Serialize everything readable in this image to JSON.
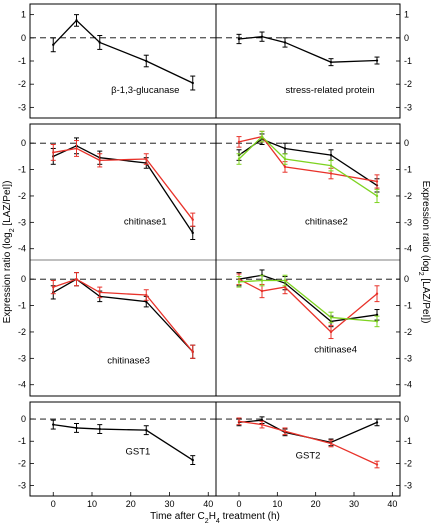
{
  "figure": {
    "xlabel_prefix": "Time after C",
    "xlabel_sub": "2",
    "xlabel_mid": "H",
    "xlabel_sub2": "4",
    "xlabel_suffix": " treatment (h)",
    "ylabel_left": "Expression ratio (log",
    "ylabel_right": "Expression ratio (log",
    "ylabel_sub": "2",
    "ylabel_tail": " [LAZ/PeI])",
    "colors": {
      "black": "#000000",
      "red": "#e8322a",
      "green": "#7ed321",
      "dash": "#000000"
    }
  },
  "chart_data": [
    {
      "type": "line",
      "title": "β-1,3-glucanase",
      "panel": "top-left",
      "x": [
        0,
        6,
        12,
        24,
        36
      ],
      "xlim": [
        -6,
        42
      ],
      "ylim": [
        -3.2,
        1.2
      ],
      "yticks": [
        -3,
        -2,
        -1,
        0,
        1
      ],
      "xticks": [],
      "series": [
        {
          "color": "black",
          "y": [
            -0.3,
            0.75,
            -0.2,
            -1.0,
            -1.95
          ],
          "err": [
            0.3,
            0.25,
            0.3,
            0.25,
            0.3
          ]
        }
      ]
    },
    {
      "type": "line",
      "title": "stress-related protein",
      "panel": "top-right",
      "x": [
        0,
        6,
        12,
        24,
        36
      ],
      "xlim": [
        -6,
        42
      ],
      "ylim": [
        -3.2,
        1.2
      ],
      "yticks": [
        -3,
        -2,
        -1,
        0,
        1
      ],
      "xticks": [],
      "series": [
        {
          "color": "black",
          "y": [
            -0.05,
            0.05,
            -0.2,
            -1.05,
            -0.98
          ],
          "err": [
            0.2,
            0.2,
            0.2,
            0.15,
            0.15
          ]
        }
      ]
    },
    {
      "type": "line",
      "title": "chitinase1",
      "panel": "mid-upper-left",
      "x": [
        0,
        6,
        12,
        24,
        36
      ],
      "xlim": [
        -6,
        42
      ],
      "ylim": [
        -4.2,
        0.5
      ],
      "yticks": [
        -4,
        -3,
        -2,
        -1,
        0
      ],
      "xticks": [],
      "series": [
        {
          "color": "black",
          "y": [
            -0.5,
            -0.1,
            -0.55,
            -0.75,
            -3.4
          ],
          "err": [
            0.3,
            0.3,
            0.25,
            0.2,
            0.25
          ]
        },
        {
          "color": "red",
          "y": [
            -0.35,
            -0.2,
            -0.65,
            -0.6,
            -2.9
          ],
          "err": [
            0.3,
            0.3,
            0.25,
            0.2,
            0.25
          ]
        }
      ]
    },
    {
      "type": "line",
      "title": "chitinase2",
      "panel": "mid-upper-right",
      "x": [
        0,
        6,
        12,
        24,
        36
      ],
      "xlim": [
        -6,
        42
      ],
      "ylim": [
        -4.2,
        0.5
      ],
      "yticks": [
        -4,
        -3,
        -2,
        -1,
        0
      ],
      "xticks": [],
      "series": [
        {
          "color": "black",
          "y": [
            -0.45,
            0.15,
            -0.2,
            -0.45,
            -1.6
          ],
          "err": [
            0.2,
            0.2,
            0.2,
            0.2,
            0.25
          ]
        },
        {
          "color": "red",
          "y": [
            0.05,
            0.25,
            -0.9,
            -1.15,
            -1.45
          ],
          "err": [
            0.2,
            0.2,
            0.2,
            0.2,
            0.25
          ]
        },
        {
          "color": "green",
          "y": [
            -0.6,
            0.25,
            -0.6,
            -0.85,
            -2.0
          ],
          "err": [
            0.2,
            0.2,
            0.2,
            0.2,
            0.25
          ]
        }
      ]
    },
    {
      "type": "line",
      "title": "chitinase3",
      "panel": "mid-lower-left",
      "x": [
        0,
        6,
        12,
        24,
        36
      ],
      "xlim": [
        -6,
        42
      ],
      "ylim": [
        -4.2,
        0.5
      ],
      "yticks": [
        -4,
        -3,
        -2,
        -1,
        0
      ],
      "xticks": [],
      "series": [
        {
          "color": "black",
          "y": [
            -0.5,
            0.0,
            -0.65,
            -0.85,
            -2.75
          ],
          "err": [
            0.25,
            0.25,
            0.2,
            0.2,
            0.25
          ]
        },
        {
          "color": "red",
          "y": [
            -0.3,
            0.0,
            -0.5,
            -0.6,
            -2.75
          ],
          "err": [
            0.25,
            0.25,
            0.2,
            0.2,
            0.25
          ]
        }
      ]
    },
    {
      "type": "line",
      "title": "chitinase4",
      "panel": "mid-lower-right",
      "x": [
        0,
        6,
        12,
        24,
        36
      ],
      "xlim": [
        -6,
        42
      ],
      "ylim": [
        -4.2,
        0.5
      ],
      "yticks": [
        -4,
        -3,
        -2,
        -1,
        0
      ],
      "xticks": [],
      "series": [
        {
          "color": "black",
          "y": [
            0.0,
            0.15,
            -0.15,
            -1.6,
            -1.35
          ],
          "err": [
            0.25,
            0.2,
            0.25,
            0.2,
            0.2
          ]
        },
        {
          "color": "red",
          "y": [
            0.0,
            -0.45,
            -0.3,
            -2.0,
            -0.55
          ],
          "err": [
            0.2,
            0.25,
            0.25,
            0.25,
            0.3
          ]
        },
        {
          "color": "green",
          "y": [
            -0.1,
            -0.05,
            -0.05,
            -1.45,
            -1.6
          ],
          "err": [
            0.2,
            0.2,
            0.2,
            0.2,
            0.2
          ]
        }
      ]
    },
    {
      "type": "line",
      "title": "GST1",
      "panel": "bottom-left",
      "x": [
        0,
        6,
        12,
        24,
        36
      ],
      "xlim": [
        -6,
        42
      ],
      "ylim": [
        -3.2,
        0.5
      ],
      "yticks": [
        -3,
        -2,
        -1,
        0
      ],
      "xticks": [
        0,
        10,
        20,
        30,
        40
      ],
      "series": [
        {
          "color": "black",
          "y": [
            -0.25,
            -0.4,
            -0.45,
            -0.5,
            -1.85
          ],
          "err": [
            0.2,
            0.2,
            0.2,
            0.2,
            0.2
          ]
        }
      ]
    },
    {
      "type": "line",
      "title": "GST2",
      "panel": "bottom-right",
      "x": [
        0,
        6,
        12,
        24,
        36
      ],
      "xlim": [
        -6,
        42
      ],
      "ylim": [
        -3.2,
        0.5
      ],
      "yticks": [
        -3,
        -2,
        -1,
        0
      ],
      "xticks": [
        0,
        10,
        20,
        30,
        40
      ],
      "series": [
        {
          "color": "black",
          "y": [
            -0.15,
            -0.05,
            -0.6,
            -1.05,
            -0.15
          ],
          "err": [
            0.15,
            0.15,
            0.15,
            0.15,
            0.15
          ]
        },
        {
          "color": "red",
          "y": [
            -0.1,
            -0.25,
            -0.55,
            -1.1,
            -2.05
          ],
          "err": [
            0.15,
            0.15,
            0.15,
            0.15,
            0.15
          ]
        }
      ]
    }
  ]
}
